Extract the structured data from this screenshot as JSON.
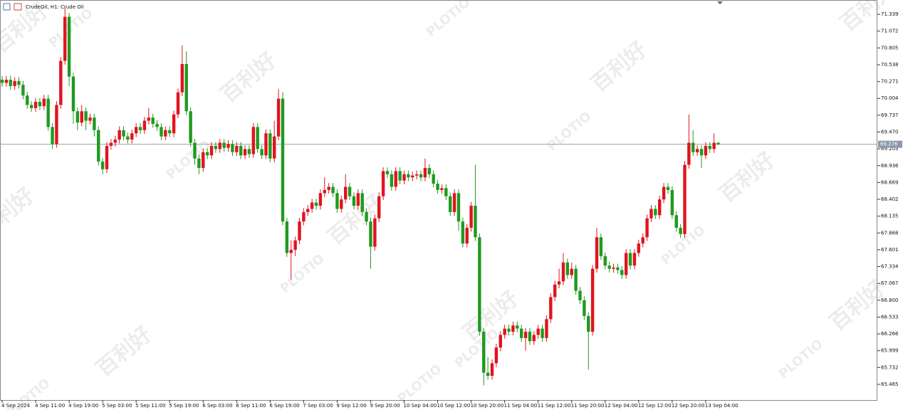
{
  "chart_data": {
    "type": "candlestick",
    "title": "CrudeOil, H1:  Crude Oil",
    "watermarks": [
      "百利好",
      "PLOTIO"
    ],
    "up_color": "#e0141e",
    "down_color": "#1f9a1f",
    "grid": false,
    "last_price": 69.276,
    "ylim": [
      65.216,
      71.566
    ],
    "yticks": [
      71.339,
      71.072,
      70.805,
      70.538,
      70.271,
      70.004,
      69.737,
      {
        "value": 69.47,
        "label": "69.470"
      },
      69.203,
      68.936,
      68.669,
      68.402,
      68.135,
      67.868,
      67.601,
      67.334,
      67.067,
      {
        "value": 66.8,
        "label": "66.800"
      },
      66.533,
      66.266,
      65.999,
      65.732,
      65.465
    ],
    "xlim": [
      0,
      209
    ],
    "xticks": [
      {
        "value": 0,
        "label": "4 Sep 2024"
      },
      {
        "value": 8,
        "label": "4 Sep 11:00"
      },
      {
        "value": 16,
        "label": "4 Sep 19:00"
      },
      {
        "value": 24,
        "label": "5 Sep 03:00"
      },
      {
        "value": 32,
        "label": "5 Sep 11:00"
      },
      {
        "value": 40,
        "label": "5 Sep 19:00"
      },
      {
        "value": 48,
        "label": "6 Sep 03:00"
      },
      {
        "value": 56,
        "label": "6 Sep 11:00"
      },
      {
        "value": 64,
        "label": "6 Sep 19:00"
      },
      {
        "value": 72,
        "label": "7 Sep 03:00"
      },
      {
        "value": 80,
        "label": "9 Sep 12:00"
      },
      {
        "value": 88,
        "label": "9 Sep 20:00"
      },
      {
        "value": 96,
        "label": "10 Sep 04:00"
      },
      {
        "value": 104,
        "label": "10 Sep 12:00"
      },
      {
        "value": 112,
        "label": "10 Sep 20:00"
      },
      {
        "value": 120,
        "label": "11 Sep 04:00"
      },
      {
        "value": 128,
        "label": "11 Sep 12:00"
      },
      {
        "value": 136,
        "label": "11 Sep 20:00"
      },
      {
        "value": 144,
        "label": "12 Sep 04:00"
      },
      {
        "value": 152,
        "label": "12 Sep 12:00"
      },
      {
        "value": 160,
        "label": "12 Sep 20:00"
      },
      {
        "value": 168,
        "label": "13 Sep 04:00"
      }
    ],
    "candles": [
      [
        70.3,
        70.36,
        70.19,
        70.25
      ],
      [
        70.25,
        70.36,
        70.19,
        70.3
      ],
      [
        70.3,
        70.36,
        70.14,
        70.2
      ],
      [
        70.2,
        70.34,
        70.14,
        70.28
      ],
      [
        70.28,
        70.34,
        70.16,
        70.22
      ],
      [
        70.22,
        70.28,
        69.99,
        70.05
      ],
      [
        70.05,
        70.11,
        69.84,
        69.9
      ],
      [
        69.9,
        69.96,
        69.79,
        69.85
      ],
      [
        69.85,
        70.01,
        69.79,
        69.95
      ],
      [
        69.95,
        70.01,
        69.82,
        69.88
      ],
      [
        69.88,
        70.06,
        69.82,
        70.0
      ],
      [
        70.0,
        70.06,
        69.49,
        69.55
      ],
      [
        69.55,
        69.61,
        69.2,
        69.28
      ],
      [
        69.28,
        69.96,
        69.22,
        69.9
      ],
      [
        69.9,
        70.66,
        69.84,
        70.6
      ],
      [
        70.6,
        71.45,
        70.54,
        71.3
      ],
      [
        71.3,
        71.36,
        70.2,
        70.35
      ],
      [
        70.35,
        70.41,
        69.6,
        69.8
      ],
      [
        69.8,
        69.86,
        69.5,
        69.62
      ],
      [
        69.62,
        69.9,
        69.56,
        69.8
      ],
      [
        69.8,
        69.86,
        69.5,
        69.65
      ],
      [
        69.65,
        69.76,
        69.59,
        69.7
      ],
      [
        69.7,
        69.76,
        69.4,
        69.5
      ],
      [
        69.5,
        69.56,
        68.94,
        69.0
      ],
      [
        69.0,
        69.06,
        68.8,
        68.88
      ],
      [
        68.88,
        69.31,
        68.82,
        69.25
      ],
      [
        69.25,
        69.36,
        69.19,
        69.3
      ],
      [
        69.3,
        69.41,
        69.24,
        69.35
      ],
      [
        69.35,
        69.56,
        69.29,
        69.5
      ],
      [
        69.5,
        69.56,
        69.34,
        69.4
      ],
      [
        69.4,
        69.46,
        69.29,
        69.35
      ],
      [
        69.35,
        69.51,
        69.29,
        69.45
      ],
      [
        69.45,
        69.61,
        69.39,
        69.55
      ],
      [
        69.55,
        69.61,
        69.44,
        69.5
      ],
      [
        69.5,
        69.71,
        69.44,
        69.65
      ],
      [
        69.65,
        69.85,
        69.59,
        69.7
      ],
      [
        69.7,
        69.76,
        69.54,
        69.6
      ],
      [
        69.6,
        69.66,
        69.49,
        69.55
      ],
      [
        69.55,
        69.61,
        69.34,
        69.4
      ],
      [
        69.4,
        69.56,
        69.34,
        69.5
      ],
      [
        69.5,
        69.56,
        69.39,
        69.45
      ],
      [
        69.45,
        69.81,
        69.39,
        69.75
      ],
      [
        69.75,
        70.16,
        69.69,
        70.1
      ],
      [
        70.1,
        70.85,
        70.04,
        70.55
      ],
      [
        70.55,
        70.75,
        69.74,
        69.8
      ],
      [
        69.8,
        69.86,
        69.24,
        69.3
      ],
      [
        69.3,
        69.36,
        68.95,
        69.05
      ],
      [
        69.05,
        69.11,
        68.8,
        68.9
      ],
      [
        68.9,
        69.21,
        68.84,
        69.15
      ],
      [
        69.15,
        69.21,
        69.04,
        69.1
      ],
      [
        69.1,
        69.31,
        69.04,
        69.25
      ],
      [
        69.25,
        69.31,
        69.14,
        69.2
      ],
      [
        69.2,
        69.36,
        69.14,
        69.3
      ],
      [
        69.3,
        69.36,
        69.16,
        69.22
      ],
      [
        69.22,
        69.34,
        69.16,
        69.28
      ],
      [
        69.28,
        69.34,
        69.09,
        69.15
      ],
      [
        69.15,
        69.31,
        69.09,
        69.25
      ],
      [
        69.25,
        69.31,
        69.04,
        69.1
      ],
      [
        69.1,
        69.26,
        69.04,
        69.2
      ],
      [
        69.2,
        69.26,
        69.06,
        69.12
      ],
      [
        69.12,
        69.61,
        69.06,
        69.55
      ],
      [
        69.55,
        69.61,
        69.14,
        69.2
      ],
      [
        69.2,
        69.26,
        69.04,
        69.1
      ],
      [
        69.1,
        69.51,
        69.04,
        69.45
      ],
      [
        69.45,
        69.51,
        68.99,
        69.05
      ],
      [
        69.05,
        69.65,
        68.99,
        69.4
      ],
      [
        69.4,
        70.15,
        69.34,
        70.0
      ],
      [
        70.0,
        70.1,
        67.99,
        68.05
      ],
      [
        68.05,
        68.11,
        67.49,
        67.55
      ],
      [
        67.55,
        67.75,
        67.12,
        67.6
      ],
      [
        67.6,
        67.81,
        67.5,
        67.75
      ],
      [
        67.75,
        68.11,
        67.69,
        68.05
      ],
      [
        68.05,
        68.26,
        67.99,
        68.2
      ],
      [
        68.2,
        68.31,
        68.14,
        68.25
      ],
      [
        68.25,
        68.41,
        68.19,
        68.35
      ],
      [
        68.35,
        68.41,
        68.24,
        68.3
      ],
      [
        68.3,
        68.56,
        68.24,
        68.5
      ],
      [
        68.5,
        68.75,
        68.44,
        68.55
      ],
      [
        68.55,
        68.66,
        68.49,
        68.6
      ],
      [
        68.6,
        68.66,
        68.44,
        68.5
      ],
      [
        68.5,
        68.56,
        68.19,
        68.25
      ],
      [
        68.25,
        68.46,
        68.19,
        68.4
      ],
      [
        68.4,
        68.8,
        68.34,
        68.6
      ],
      [
        68.6,
        68.66,
        68.39,
        68.45
      ],
      [
        68.45,
        68.51,
        68.24,
        68.3
      ],
      [
        68.3,
        68.56,
        68.24,
        68.5
      ],
      [
        68.5,
        68.56,
        68.14,
        68.2
      ],
      [
        68.2,
        68.26,
        67.99,
        68.05
      ],
      [
        68.05,
        68.11,
        67.3,
        67.65
      ],
      [
        67.65,
        68.16,
        67.59,
        68.1
      ],
      [
        68.1,
        68.51,
        68.04,
        68.45
      ],
      [
        68.45,
        68.91,
        68.39,
        68.85
      ],
      [
        68.85,
        68.91,
        68.74,
        68.8
      ],
      [
        68.8,
        68.86,
        68.54,
        68.6
      ],
      [
        68.6,
        68.91,
        68.54,
        68.85
      ],
      [
        68.85,
        68.91,
        68.64,
        68.7
      ],
      [
        68.7,
        68.86,
        68.64,
        68.8
      ],
      [
        68.8,
        68.86,
        68.69,
        68.75
      ],
      [
        68.75,
        68.84,
        68.69,
        68.78
      ],
      [
        68.78,
        68.86,
        68.72,
        68.8
      ],
      [
        68.8,
        68.86,
        68.69,
        68.75
      ],
      [
        68.75,
        69.05,
        68.69,
        68.9
      ],
      [
        68.9,
        68.96,
        68.74,
        68.8
      ],
      [
        68.8,
        68.86,
        68.59,
        68.65
      ],
      [
        68.65,
        68.71,
        68.49,
        68.55
      ],
      [
        68.55,
        68.64,
        68.49,
        68.58
      ],
      [
        68.58,
        68.64,
        68.39,
        68.45
      ],
      [
        68.45,
        68.51,
        68.14,
        68.2
      ],
      [
        68.2,
        68.56,
        68.14,
        68.5
      ],
      [
        68.5,
        68.56,
        67.9,
        68.05
      ],
      [
        68.05,
        68.11,
        67.64,
        67.7
      ],
      [
        67.7,
        68.01,
        67.64,
        67.95
      ],
      [
        67.95,
        68.36,
        67.89,
        68.3
      ],
      [
        68.3,
        68.95,
        67.74,
        67.8
      ],
      [
        67.8,
        67.86,
        66.24,
        66.3
      ],
      [
        66.3,
        66.36,
        65.45,
        65.65
      ],
      [
        65.65,
        65.9,
        65.54,
        65.6
      ],
      [
        65.6,
        65.86,
        65.54,
        65.8
      ],
      [
        65.8,
        66.11,
        65.74,
        66.05
      ],
      [
        66.05,
        66.31,
        65.99,
        66.25
      ],
      [
        66.25,
        66.41,
        66.19,
        66.35
      ],
      [
        66.35,
        66.41,
        66.24,
        66.3
      ],
      [
        66.3,
        66.46,
        66.24,
        66.4
      ],
      [
        66.4,
        66.46,
        66.29,
        66.35
      ],
      [
        66.35,
        66.41,
        66.14,
        66.2
      ],
      [
        66.2,
        66.36,
        66.0,
        66.3
      ],
      [
        66.3,
        66.36,
        66.09,
        66.15
      ],
      [
        66.15,
        66.31,
        66.09,
        66.25
      ],
      [
        66.25,
        66.41,
        66.19,
        66.35
      ],
      [
        66.35,
        66.41,
        66.14,
        66.2
      ],
      [
        66.2,
        66.56,
        66.14,
        66.5
      ],
      [
        66.5,
        66.91,
        66.44,
        66.85
      ],
      [
        66.85,
        67.11,
        66.79,
        67.05
      ],
      [
        67.05,
        67.3,
        66.99,
        67.1
      ],
      [
        67.1,
        67.55,
        67.04,
        67.4
      ],
      [
        67.4,
        67.46,
        67.14,
        67.2
      ],
      [
        67.2,
        67.4,
        67.14,
        67.3
      ],
      [
        67.3,
        67.36,
        66.89,
        66.95
      ],
      [
        66.95,
        67.01,
        66.74,
        66.8
      ],
      [
        66.8,
        66.86,
        66.49,
        66.55
      ],
      [
        66.55,
        66.61,
        65.7,
        66.3
      ],
      [
        66.3,
        67.36,
        66.24,
        67.3
      ],
      [
        67.3,
        67.95,
        67.24,
        67.8
      ],
      [
        67.8,
        67.86,
        67.44,
        67.5
      ],
      [
        67.5,
        67.56,
        67.29,
        67.35
      ],
      [
        67.35,
        67.41,
        67.24,
        67.3
      ],
      [
        67.3,
        67.38,
        67.24,
        67.32
      ],
      [
        67.32,
        67.38,
        67.22,
        67.28
      ],
      [
        67.28,
        67.34,
        67.14,
        67.2
      ],
      [
        67.2,
        67.61,
        67.14,
        67.55
      ],
      [
        67.55,
        67.61,
        67.29,
        67.35
      ],
      [
        67.35,
        67.61,
        67.29,
        67.55
      ],
      [
        67.55,
        67.76,
        67.49,
        67.7
      ],
      [
        67.7,
        67.86,
        67.64,
        67.8
      ],
      [
        67.8,
        68.16,
        67.74,
        68.1
      ],
      [
        68.1,
        68.31,
        68.04,
        68.25
      ],
      [
        68.25,
        68.31,
        68.09,
        68.15
      ],
      [
        68.15,
        68.46,
        68.09,
        68.4
      ],
      [
        68.4,
        68.66,
        68.34,
        68.6
      ],
      [
        68.6,
        68.66,
        68.49,
        68.55
      ],
      [
        68.55,
        68.61,
        68.09,
        68.15
      ],
      [
        68.15,
        68.21,
        67.89,
        67.95
      ],
      [
        67.95,
        68.01,
        67.79,
        67.85
      ],
      [
        67.85,
        69.01,
        67.79,
        68.95
      ],
      [
        68.95,
        69.75,
        68.89,
        69.3
      ],
      [
        69.3,
        69.5,
        69.09,
        69.15
      ],
      [
        69.15,
        69.26,
        69.09,
        69.2
      ],
      [
        69.2,
        69.26,
        68.9,
        69.1
      ],
      [
        69.1,
        69.31,
        69.04,
        69.25
      ],
      [
        69.25,
        69.31,
        69.14,
        69.2
      ],
      [
        69.2,
        69.45,
        69.14,
        69.3
      ],
      [
        69.3,
        69.31,
        69.26,
        69.276
      ]
    ]
  }
}
